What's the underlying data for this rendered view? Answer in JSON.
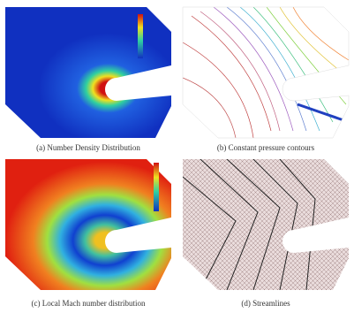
{
  "panels": [
    {
      "caption": "(a) Number Density Distribution"
    },
    {
      "caption": "(b) Constant pressure contours"
    },
    {
      "caption": "(c) Local Mach number distribution"
    },
    {
      "caption": "(d) Streamlines"
    }
  ]
}
